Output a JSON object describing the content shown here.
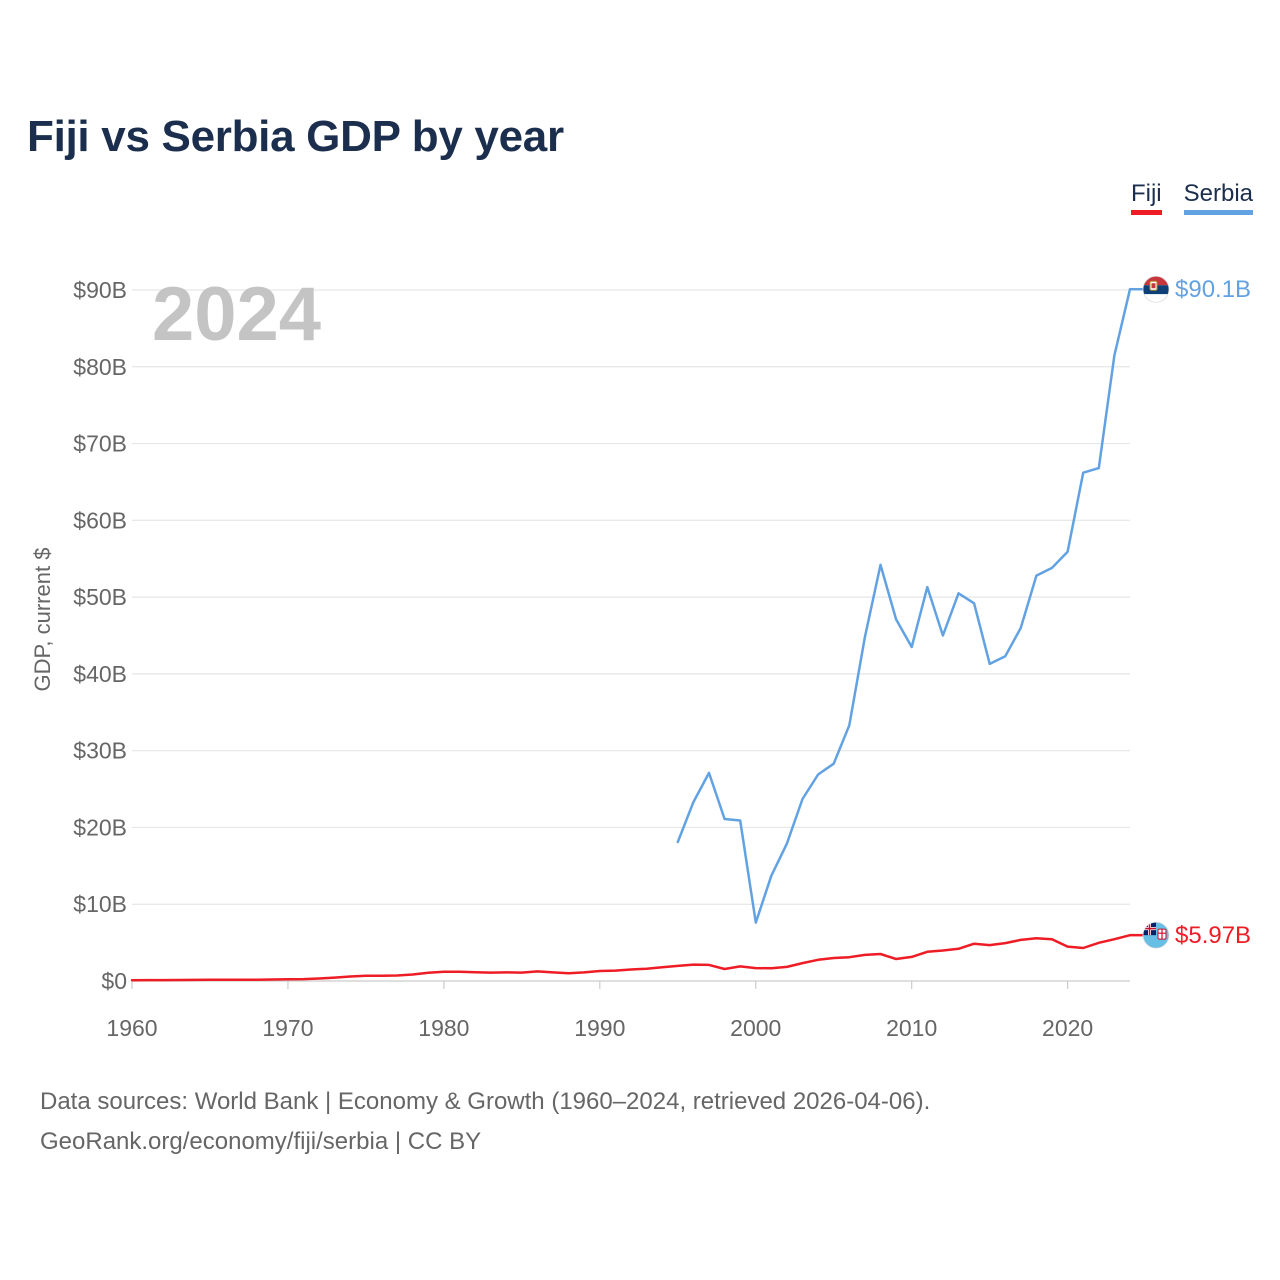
{
  "title": "Fiji vs Serbia GDP by year",
  "legend": [
    {
      "label": "Fiji",
      "color": "#ee1c25"
    },
    {
      "label": "Serbia",
      "color": "#62a2e3"
    }
  ],
  "year_watermark": "2024",
  "source": {
    "line1": "Data sources: World Bank | Economy & Growth (1960–2024, retrieved 2026-04-06).",
    "line2": "GeoRank.org/economy/fiji/serbia | CC BY"
  },
  "chart_data": {
    "type": "line",
    "title": "Fiji vs Serbia GDP by year",
    "xlabel": "",
    "ylabel": "GDP, current $",
    "xlim": [
      1960,
      2024
    ],
    "ylim": [
      0,
      90
    ],
    "y_unit": "billions USD",
    "x_ticks": [
      1960,
      1970,
      1980,
      1990,
      2000,
      2010,
      2020
    ],
    "x_tick_labels": [
      "1960",
      "1970",
      "1980",
      "1990",
      "2000",
      "2010",
      "2020"
    ],
    "y_ticks": [
      0,
      10,
      20,
      30,
      40,
      50,
      60,
      70,
      80,
      90
    ],
    "y_tick_labels": [
      "$0",
      "$10B",
      "$20B",
      "$30B",
      "$40B",
      "$50B",
      "$60B",
      "$70B",
      "$80B",
      "$90B"
    ],
    "grid": true,
    "legend_position": "top-right",
    "series": [
      {
        "name": "Fiji",
        "color": "#ee1c25",
        "end_label": "$5.97B",
        "x": [
          1960,
          1961,
          1962,
          1963,
          1964,
          1965,
          1966,
          1967,
          1968,
          1969,
          1970,
          1971,
          1972,
          1973,
          1974,
          1975,
          1976,
          1977,
          1978,
          1979,
          1980,
          1981,
          1982,
          1983,
          1984,
          1985,
          1986,
          1987,
          1988,
          1989,
          1990,
          1991,
          1992,
          1993,
          1994,
          1995,
          1996,
          1997,
          1998,
          1999,
          2000,
          2001,
          2002,
          2003,
          2004,
          2005,
          2006,
          2007,
          2008,
          2009,
          2010,
          2011,
          2012,
          2013,
          2014,
          2015,
          2016,
          2017,
          2018,
          2019,
          2020,
          2021,
          2022,
          2023,
          2024
        ],
        "values": [
          0.11,
          0.12,
          0.12,
          0.13,
          0.14,
          0.15,
          0.16,
          0.16,
          0.17,
          0.19,
          0.22,
          0.25,
          0.32,
          0.44,
          0.59,
          0.68,
          0.69,
          0.72,
          0.85,
          1.07,
          1.2,
          1.2,
          1.14,
          1.1,
          1.12,
          1.1,
          1.25,
          1.12,
          1.02,
          1.12,
          1.3,
          1.36,
          1.5,
          1.6,
          1.8,
          1.97,
          2.14,
          2.1,
          1.56,
          1.9,
          1.68,
          1.66,
          1.84,
          2.33,
          2.76,
          3.0,
          3.1,
          3.4,
          3.52,
          2.87,
          3.14,
          3.8,
          3.97,
          4.2,
          4.86,
          4.68,
          4.93,
          5.35,
          5.58,
          5.44,
          4.48,
          4.3,
          4.98,
          5.44,
          5.97
        ]
      },
      {
        "name": "Serbia",
        "color": "#62a2e3",
        "end_label": "$90.1B",
        "x": [
          1995,
          1996,
          1997,
          1998,
          1999,
          2000,
          2001,
          2002,
          2003,
          2004,
          2005,
          2006,
          2007,
          2008,
          2009,
          2010,
          2011,
          2012,
          2013,
          2014,
          2015,
          2016,
          2017,
          2018,
          2019,
          2020,
          2021,
          2022,
          2023,
          2024
        ],
        "values": [
          18.1,
          23.3,
          27.1,
          21.1,
          20.9,
          7.6,
          13.7,
          17.9,
          23.7,
          26.9,
          28.3,
          33.3,
          44.8,
          54.2,
          47.1,
          43.5,
          51.3,
          45.0,
          50.5,
          49.2,
          41.3,
          42.3,
          46.0,
          52.8,
          53.8,
          55.9,
          66.2,
          66.8,
          81.5,
          90.1
        ]
      }
    ]
  }
}
